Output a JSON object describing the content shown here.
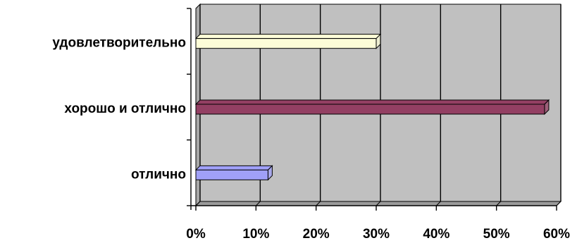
{
  "chart_data": {
    "type": "bar",
    "orientation": "horizontal",
    "style": "3d",
    "categories": [
      "отлично",
      "хорошо и отлично",
      "удовлетворительно"
    ],
    "values": [
      12,
      58,
      30
    ],
    "bar_colors": [
      "#a0a0f8",
      "#933f63",
      "#fdfdd8"
    ],
    "xlim": [
      0,
      60
    ],
    "xticks": [
      "0%",
      "10%",
      "20%",
      "30%",
      "40%",
      "50%",
      "60%"
    ],
    "grid": true,
    "plot_background": "#c0c0c0",
    "legend": "none",
    "title": "",
    "xlabel": "",
    "ylabel": ""
  }
}
